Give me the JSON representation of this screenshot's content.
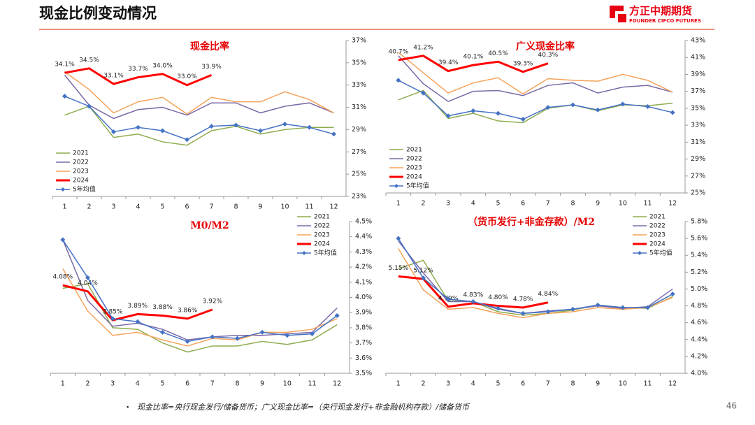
{
  "header": {
    "title": "现金比例变动情况",
    "logo": "方正中期期货",
    "logo_sub": "FOUNDER CIFCO FUTURES"
  },
  "chart_data": [
    {
      "type": "line",
      "title": "现金比率",
      "categories": [
        "1",
        "2",
        "3",
        "4",
        "5",
        "6",
        "7",
        "8",
        "9",
        "10",
        "11",
        "12"
      ],
      "ylim": [
        23,
        37
      ],
      "yticks": [
        {
          "value": 23,
          "label": "23%"
        },
        {
          "value": 25,
          "label": "25%"
        },
        {
          "value": 27,
          "label": "27%"
        },
        {
          "value": 29,
          "label": "29%"
        },
        {
          "value": 31,
          "label": "31%"
        },
        {
          "value": 33,
          "label": "33%"
        },
        {
          "value": 35,
          "label": "35%"
        },
        {
          "value": 37,
          "label": "37%"
        }
      ],
      "legend": "lower left",
      "series": [
        {
          "name": "2021",
          "color": "#8fac4f",
          "values": [
            30.3,
            31.1,
            28.3,
            28.6,
            27.9,
            27.6,
            28.9,
            29.3,
            28.6,
            29.0,
            29.2,
            29.2
          ]
        },
        {
          "name": "2022",
          "color": "#7b6aa8",
          "values": [
            33.9,
            31.2,
            30.0,
            30.8,
            31.0,
            30.3,
            31.4,
            31.4,
            30.5,
            31.1,
            31.4,
            30.5
          ]
        },
        {
          "name": "2023",
          "color": "#f5a35a",
          "values": [
            34.2,
            32.6,
            30.5,
            31.5,
            31.9,
            30.4,
            31.9,
            31.5,
            31.5,
            32.4,
            31.7,
            30.5
          ]
        },
        {
          "name": "2024",
          "color": "#ff0000",
          "values": [
            34.1,
            34.5,
            33.1,
            33.7,
            34.0,
            33.0,
            33.9,
            null,
            null,
            null,
            null,
            null
          ],
          "value_labels": [
            "34.1%",
            "34.5%",
            "33.1%",
            "33.7%",
            "34.0%",
            "33.0%",
            "33.9%",
            null,
            null,
            null,
            null,
            null
          ]
        },
        {
          "name": "5年均值",
          "color": "#4472c4",
          "marker": "diamond",
          "values": [
            32.0,
            31.1,
            28.8,
            29.2,
            28.9,
            28.1,
            29.3,
            29.4,
            28.9,
            29.5,
            29.2,
            28.6
          ]
        }
      ]
    },
    {
      "type": "line",
      "title": "广义现金比率",
      "categories": [
        "1",
        "2",
        "3",
        "4",
        "5",
        "6",
        "7",
        "8",
        "9",
        "10",
        "11",
        "12"
      ],
      "ylim": [
        25,
        43
      ],
      "yticks": [
        {
          "value": 25,
          "label": "25%"
        },
        {
          "value": 27,
          "label": "27%"
        },
        {
          "value": 29,
          "label": "29%"
        },
        {
          "value": 31,
          "label": "31%"
        },
        {
          "value": 33,
          "label": "33%"
        },
        {
          "value": 35,
          "label": "35%"
        },
        {
          "value": 37,
          "label": "37%"
        },
        {
          "value": 39,
          "label": "39%"
        },
        {
          "value": 41,
          "label": "41%"
        },
        {
          "value": 43,
          "label": "43%"
        }
      ],
      "legend": "lower left",
      "series": [
        {
          "name": "2021",
          "color": "#8fac4f",
          "values": [
            36.0,
            37.1,
            33.8,
            34.4,
            33.5,
            33.3,
            35.0,
            35.4,
            34.7,
            35.4,
            35.3,
            35.6
          ]
        },
        {
          "name": "2022",
          "color": "#7b6aa8",
          "values": [
            41.2,
            37.9,
            35.8,
            37.0,
            37.1,
            36.5,
            37.7,
            38.0,
            36.8,
            37.5,
            37.7,
            36.9
          ]
        },
        {
          "name": "2023",
          "color": "#f5a35a",
          "values": [
            41.6,
            39.2,
            36.8,
            38.0,
            38.6,
            36.7,
            38.5,
            38.3,
            38.2,
            39.0,
            38.3,
            36.9
          ]
        },
        {
          "name": "2024",
          "color": "#ff0000",
          "values": [
            40.7,
            41.2,
            39.4,
            40.1,
            40.5,
            39.3,
            40.3,
            null,
            null,
            null,
            null,
            null
          ],
          "value_labels": [
            "40.7%",
            "41.2%",
            "39.4%",
            "40.1%",
            "40.5%",
            "39.3%",
            "40.3%",
            null,
            null,
            null,
            null,
            null
          ]
        },
        {
          "name": "5年均值",
          "color": "#4472c4",
          "marker": "diamond",
          "values": [
            38.3,
            36.8,
            34.1,
            34.7,
            34.4,
            33.7,
            35.1,
            35.4,
            34.8,
            35.5,
            35.2,
            34.5
          ]
        }
      ]
    },
    {
      "type": "line",
      "title": "M0/M2",
      "categories": [
        "1",
        "2",
        "3",
        "4",
        "5",
        "6",
        "7",
        "8",
        "9",
        "10",
        "11",
        "12"
      ],
      "ylim": [
        3.5,
        4.5
      ],
      "yticks": [
        {
          "value": 3.5,
          "label": "3.5%"
        },
        {
          "value": 3.6,
          "label": "3.6%"
        },
        {
          "value": 3.7,
          "label": "3.7%"
        },
        {
          "value": 3.8,
          "label": "3.8%"
        },
        {
          "value": 3.9,
          "label": "3.9%"
        },
        {
          "value": 4.0,
          "label": "4.0%"
        },
        {
          "value": 4.1,
          "label": "4.1%"
        },
        {
          "value": 4.2,
          "label": "4.2%"
        },
        {
          "value": 4.3,
          "label": "4.3%"
        },
        {
          "value": 4.4,
          "label": "4.4%"
        },
        {
          "value": 4.5,
          "label": "4.5%"
        }
      ],
      "legend": "upper right",
      "series": [
        {
          "name": "2021",
          "color": "#8fac4f",
          "values": [
            4.06,
            4.09,
            3.8,
            3.79,
            3.7,
            3.64,
            3.68,
            3.68,
            3.71,
            3.69,
            3.72,
            3.82
          ]
        },
        {
          "name": "2022",
          "color": "#7b6aa8",
          "values": [
            4.38,
            3.98,
            3.81,
            3.83,
            3.79,
            3.72,
            3.74,
            3.75,
            3.75,
            3.76,
            3.77,
            3.93
          ]
        },
        {
          "name": "2023",
          "color": "#f5a35a",
          "values": [
            4.19,
            3.91,
            3.75,
            3.77,
            3.72,
            3.68,
            3.73,
            3.72,
            3.77,
            3.77,
            3.79,
            3.86
          ]
        },
        {
          "name": "2024",
          "color": "#ff0000",
          "values": [
            4.08,
            4.04,
            3.85,
            3.89,
            3.88,
            3.86,
            3.92,
            null,
            null,
            null,
            null,
            null
          ],
          "value_labels": [
            "4.08%",
            "4.04%",
            "3.85%",
            "3.89%",
            "3.88%",
            "3.86%",
            "3.92%",
            null,
            null,
            null,
            null,
            null
          ]
        },
        {
          "name": "5年均值",
          "color": "#4472c4",
          "marker": "diamond",
          "values": [
            4.38,
            4.13,
            3.86,
            3.84,
            3.77,
            3.71,
            3.74,
            3.73,
            3.77,
            3.75,
            3.76,
            3.88
          ]
        }
      ]
    },
    {
      "type": "line",
      "title": "（货币发行+非金存款）/M2",
      "categories": [
        "1",
        "2",
        "3",
        "4",
        "5",
        "6",
        "7",
        "8",
        "9",
        "10",
        "11",
        "12"
      ],
      "ylim": [
        4.0,
        5.8
      ],
      "yticks": [
        {
          "value": 4.0,
          "label": "4.0%"
        },
        {
          "value": 4.2,
          "label": "4.2%"
        },
        {
          "value": 4.4,
          "label": "4.4%"
        },
        {
          "value": 4.6,
          "label": "4.6%"
        },
        {
          "value": 4.8,
          "label": "4.8%"
        },
        {
          "value": 5.0,
          "label": "5.0%"
        },
        {
          "value": 5.2,
          "label": "5.2%"
        },
        {
          "value": 5.4,
          "label": "5.4%"
        },
        {
          "value": 5.6,
          "label": "5.6%"
        },
        {
          "value": 5.8,
          "label": "5.8%"
        }
      ],
      "legend": "upper right",
      "series": [
        {
          "name": "2021",
          "color": "#8fac4f",
          "values": [
            5.24,
            5.34,
            4.86,
            4.85,
            4.73,
            4.69,
            4.71,
            4.75,
            4.81,
            4.78,
            4.77,
            4.91
          ]
        },
        {
          "name": "2022",
          "color": "#7b6aa8",
          "values": [
            5.57,
            5.19,
            4.85,
            4.85,
            4.76,
            4.71,
            4.74,
            4.76,
            4.8,
            4.77,
            4.79,
            5.0
          ]
        },
        {
          "name": "2023",
          "color": "#f5a35a",
          "values": [
            5.48,
            4.99,
            4.76,
            4.78,
            4.71,
            4.66,
            4.71,
            4.73,
            4.78,
            4.76,
            4.78,
            4.9
          ]
        },
        {
          "name": "2024",
          "color": "#ff0000",
          "values": [
            5.15,
            5.12,
            4.79,
            4.83,
            4.8,
            4.78,
            4.84,
            null,
            null,
            null,
            null,
            null
          ],
          "value_labels": [
            "5.15%",
            "5.12%",
            "4.79%",
            "4.83%",
            "4.80%",
            "4.78%",
            "4.84%",
            null,
            null,
            null,
            null,
            null
          ]
        },
        {
          "name": "5年均值",
          "color": "#4472c4",
          "marker": "diamond",
          "values": [
            5.6,
            5.13,
            4.88,
            4.85,
            4.77,
            4.71,
            4.73,
            4.76,
            4.81,
            4.78,
            4.78,
            4.94
          ]
        }
      ]
    }
  ],
  "footnote": "现金比率=央行现金发行/储备货币；广义现金比率=（央行现金发行+非金融机构存款）/储备货币",
  "page_number": "46"
}
